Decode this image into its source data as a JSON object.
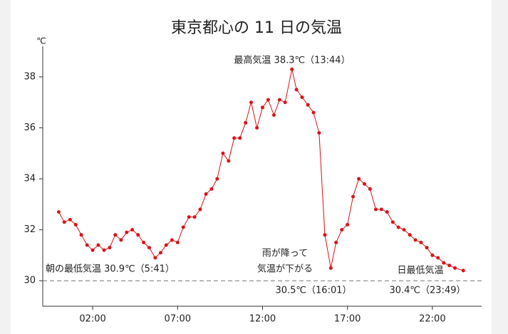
{
  "chart_data": {
    "type": "line",
    "title": "東京都心の 11 日の気温",
    "y_unit": "℃",
    "x": [
      0.0,
      0.33,
      0.67,
      1.0,
      1.33,
      1.67,
      2.0,
      2.33,
      2.67,
      3.0,
      3.33,
      3.67,
      4.0,
      4.33,
      4.67,
      5.0,
      5.33,
      5.68,
      6.0,
      6.33,
      6.67,
      7.0,
      7.33,
      7.67,
      8.0,
      8.33,
      8.67,
      9.0,
      9.33,
      9.67,
      10.0,
      10.33,
      10.67,
      11.0,
      11.33,
      11.67,
      12.0,
      12.33,
      12.67,
      13.0,
      13.33,
      13.73,
      14.0,
      14.33,
      14.67,
      15.0,
      15.33,
      15.67,
      16.02,
      16.33,
      16.67,
      17.0,
      17.33,
      17.67,
      18.0,
      18.33,
      18.67,
      19.0,
      19.33,
      19.67,
      20.0,
      20.33,
      20.67,
      21.0,
      21.33,
      21.67,
      22.0,
      22.33,
      22.67,
      23.0,
      23.33,
      23.82
    ],
    "series": [
      {
        "name": "気温",
        "color": "#d7141a",
        "values": [
          32.7,
          32.3,
          32.4,
          32.2,
          31.8,
          31.4,
          31.2,
          31.4,
          31.2,
          31.3,
          31.8,
          31.6,
          31.9,
          32.0,
          31.8,
          31.5,
          31.3,
          30.9,
          31.1,
          31.4,
          31.6,
          31.5,
          32.1,
          32.5,
          32.5,
          32.8,
          33.4,
          33.6,
          34.0,
          35.0,
          34.7,
          35.6,
          35.6,
          36.2,
          37.0,
          36.0,
          36.8,
          37.1,
          36.5,
          37.1,
          37.0,
          38.3,
          37.5,
          37.2,
          36.9,
          36.6,
          35.8,
          31.8,
          30.5,
          31.5,
          32.0,
          32.2,
          33.3,
          34.0,
          33.8,
          33.6,
          32.8,
          32.8,
          32.7,
          32.3,
          32.1,
          32.0,
          31.8,
          31.6,
          31.5,
          31.3,
          31.0,
          30.9,
          30.7,
          30.6,
          30.5,
          30.4
        ]
      }
    ],
    "xlim": [
      -0.94,
      24.9
    ],
    "ylim": [
      29,
      39.2
    ],
    "xticks": [
      {
        "value": 2,
        "label": "02:00"
      },
      {
        "value": 7,
        "label": "07:00"
      },
      {
        "value": 12,
        "label": "12:00"
      },
      {
        "value": 17,
        "label": "17:00"
      },
      {
        "value": 22,
        "label": "22:00"
      }
    ],
    "yticks": [
      30,
      32,
      34,
      36,
      38
    ],
    "reference_line": 30,
    "annotations": [
      "最高気温 38.3℃（13:44）",
      "雨が降って",
      "気温が下がる",
      "朝の最低気温 30.9℃（5:41）",
      "30.5℃（16:01）",
      "日最低気温",
      "30.4℃（23:49）"
    ]
  }
}
